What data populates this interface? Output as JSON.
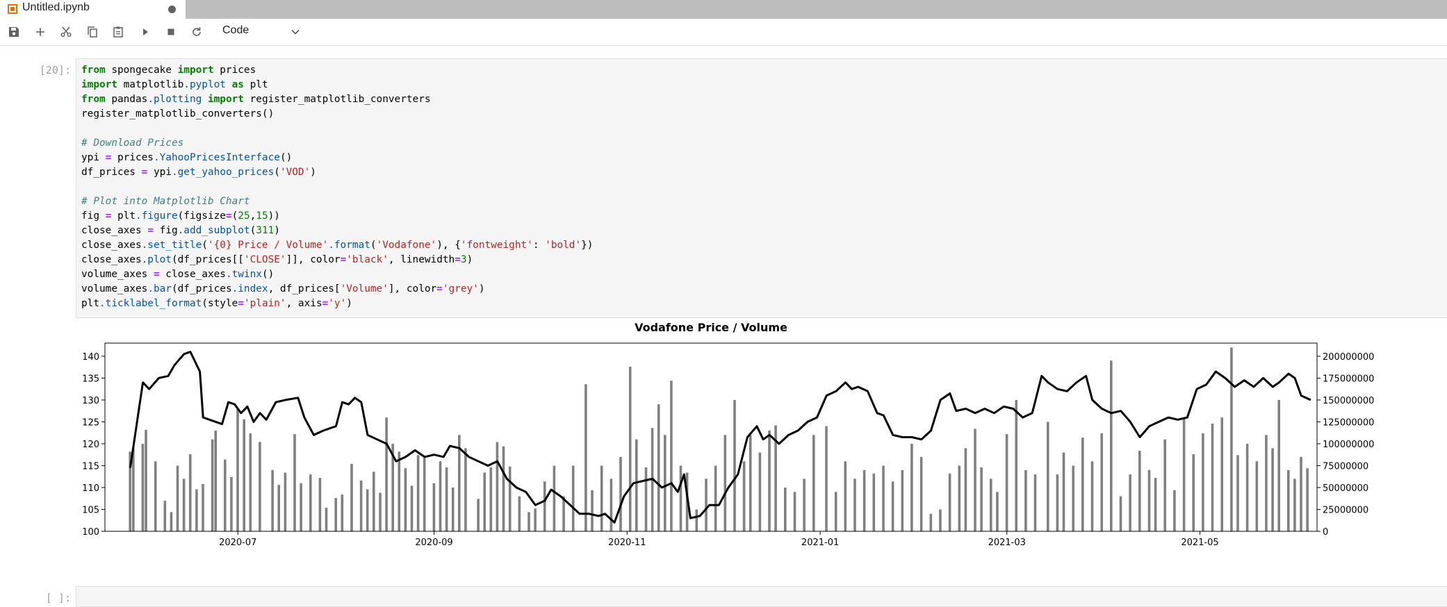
{
  "tab": {
    "title": "Untitled.ipynb",
    "icon": "notebook-icon",
    "dirty": true
  },
  "toolbar": {
    "buttons": [
      "save-icon",
      "add-cell-icon",
      "cut-icon",
      "copy-icon",
      "paste-icon",
      "run-icon",
      "stop-icon",
      "restart-icon"
    ],
    "cell_type": "Code"
  },
  "cell1": {
    "prompt": "[20]:",
    "code_lines": [
      "from spongecake import prices",
      "import matplotlib.pyplot as plt",
      "from pandas.plotting import register_matplotlib_converters",
      "register_matplotlib_converters()",
      "",
      "# Download Prices",
      "ypi = prices.YahooPricesInterface()",
      "df_prices = ypi.get_yahoo_prices('VOD')",
      "",
      "# Plot into Matplotlib Chart",
      "fig = plt.figure(figsize=(25,15))",
      "close_axes = fig.add_subplot(311)",
      "close_axes.set_title('{0} Price / Volume'.format('Vodafone'), {'fontweight': 'bold'})",
      "close_axes.plot(df_prices[['CLOSE']], color='black', linewidth=3)",
      "volume_axes = close_axes.twinx()",
      "volume_axes.bar(df_prices.index, df_prices['Volume'], color='grey')",
      "plt.ticklabel_format(style='plain', axis='y')"
    ]
  },
  "cell2": {
    "prompt": "[ ]:"
  },
  "chart_data": {
    "type": "line",
    "title": "Vodafone Price / Volume",
    "xlabel": "",
    "ylabel": "",
    "x_tick_labels": [
      "2020-07",
      "2020-09",
      "2020-11",
      "2021-01",
      "2021-03",
      "2021-05"
    ],
    "x_range": [
      "2020-05-20",
      "2021-06-07"
    ],
    "y_left_ticks": [
      100,
      105,
      110,
      115,
      120,
      125,
      130,
      135,
      140
    ],
    "y_left_range": [
      100,
      143
    ],
    "y_right_ticks": [
      0,
      25000000,
      50000000,
      75000000,
      100000000,
      125000000,
      150000000,
      175000000,
      200000000
    ],
    "y_right_range": [
      0,
      215000000
    ],
    "line_color": "#000000",
    "bar_color": "#808080",
    "close_series": {
      "name": "CLOSE",
      "points": [
        [
          "2020-05-28",
          114.5
        ],
        [
          "2020-06-01",
          134
        ],
        [
          "2020-06-03",
          132.5
        ],
        [
          "2020-06-06",
          135
        ],
        [
          "2020-06-09",
          135.5
        ],
        [
          "2020-06-11",
          138
        ],
        [
          "2020-06-14",
          140.5
        ],
        [
          "2020-06-16",
          141
        ],
        [
          "2020-06-19",
          136.5
        ],
        [
          "2020-06-20",
          126
        ],
        [
          "2020-06-24",
          125
        ],
        [
          "2020-06-26",
          124.5
        ],
        [
          "2020-06-28",
          129.5
        ],
        [
          "2020-06-30",
          129
        ],
        [
          "2020-07-02",
          127
        ],
        [
          "2020-07-04",
          128.5
        ],
        [
          "2020-07-06",
          125
        ],
        [
          "2020-07-08",
          127
        ],
        [
          "2020-07-10",
          125.5
        ],
        [
          "2020-07-13",
          129.5
        ],
        [
          "2020-07-16",
          130
        ],
        [
          "2020-07-20",
          130.5
        ],
        [
          "2020-07-22",
          126
        ],
        [
          "2020-07-25",
          122
        ],
        [
          "2020-07-28",
          123
        ],
        [
          "2020-08-01",
          124
        ],
        [
          "2020-08-03",
          129.5
        ],
        [
          "2020-08-05",
          129
        ],
        [
          "2020-08-07",
          130.5
        ],
        [
          "2020-08-09",
          129.5
        ],
        [
          "2020-08-11",
          122
        ],
        [
          "2020-08-14",
          121
        ],
        [
          "2020-08-17",
          120
        ],
        [
          "2020-08-20",
          116
        ],
        [
          "2020-08-23",
          117
        ],
        [
          "2020-08-26",
          118.5
        ],
        [
          "2020-08-29",
          117
        ],
        [
          "2020-09-01",
          117.5
        ],
        [
          "2020-09-04",
          117
        ],
        [
          "2020-09-06",
          119.5
        ],
        [
          "2020-09-09",
          119
        ],
        [
          "2020-09-12",
          117
        ],
        [
          "2020-09-15",
          116
        ],
        [
          "2020-09-18",
          115
        ],
        [
          "2020-09-21",
          116
        ],
        [
          "2020-09-24",
          112
        ],
        [
          "2020-09-27",
          110
        ],
        [
          "2020-09-30",
          109
        ],
        [
          "2020-10-03",
          106
        ],
        [
          "2020-10-06",
          107
        ],
        [
          "2020-10-08",
          109.5
        ],
        [
          "2020-10-11",
          108
        ],
        [
          "2020-10-14",
          106
        ],
        [
          "2020-10-17",
          104
        ],
        [
          "2020-10-20",
          104
        ],
        [
          "2020-10-23",
          103.5
        ],
        [
          "2020-10-25",
          104
        ],
        [
          "2020-10-28",
          102
        ],
        [
          "2020-10-31",
          108
        ],
        [
          "2020-11-03",
          111
        ],
        [
          "2020-11-06",
          111.5
        ],
        [
          "2020-11-09",
          112
        ],
        [
          "2020-11-12",
          110
        ],
        [
          "2020-11-15",
          111
        ],
        [
          "2020-11-17",
          109
        ],
        [
          "2020-11-19",
          113
        ],
        [
          "2020-11-21",
          103
        ],
        [
          "2020-11-24",
          103.5
        ],
        [
          "2020-11-27",
          106
        ],
        [
          "2020-11-30",
          106
        ],
        [
          "2020-12-03",
          110
        ],
        [
          "2020-12-06",
          113
        ],
        [
          "2020-12-09",
          121.5
        ],
        [
          "2020-12-12",
          124
        ],
        [
          "2020-12-14",
          121
        ],
        [
          "2020-12-16",
          122
        ],
        [
          "2020-12-19",
          120
        ],
        [
          "2020-12-22",
          122
        ],
        [
          "2020-12-25",
          123
        ],
        [
          "2020-12-28",
          125
        ],
        [
          "2020-12-31",
          126
        ],
        [
          "2021-01-03",
          131
        ],
        [
          "2021-01-06",
          132
        ],
        [
          "2021-01-09",
          134
        ],
        [
          "2021-01-11",
          132.5
        ],
        [
          "2021-01-13",
          133
        ],
        [
          "2021-01-16",
          132
        ],
        [
          "2021-01-19",
          127
        ],
        [
          "2021-01-21",
          126.5
        ],
        [
          "2021-01-24",
          122
        ],
        [
          "2021-01-27",
          121.5
        ],
        [
          "2021-01-30",
          121.5
        ],
        [
          "2021-02-02",
          121
        ],
        [
          "2021-02-05",
          123
        ],
        [
          "2021-02-08",
          130
        ],
        [
          "2021-02-11",
          131.5
        ],
        [
          "2021-02-13",
          127.5
        ],
        [
          "2021-02-16",
          128
        ],
        [
          "2021-02-19",
          127
        ],
        [
          "2021-02-22",
          128
        ],
        [
          "2021-02-25",
          127
        ],
        [
          "2021-02-28",
          128.5
        ],
        [
          "2021-03-03",
          128
        ],
        [
          "2021-03-06",
          126
        ],
        [
          "2021-03-09",
          127
        ],
        [
          "2021-03-12",
          135.5
        ],
        [
          "2021-03-14",
          134
        ],
        [
          "2021-03-17",
          132.5
        ],
        [
          "2021-03-20",
          132
        ],
        [
          "2021-03-23",
          134
        ],
        [
          "2021-03-26",
          135.5
        ],
        [
          "2021-03-28",
          130
        ],
        [
          "2021-03-31",
          128
        ],
        [
          "2021-04-03",
          127
        ],
        [
          "2021-04-06",
          127.5
        ],
        [
          "2021-04-09",
          125
        ],
        [
          "2021-04-12",
          121.5
        ],
        [
          "2021-04-15",
          124
        ],
        [
          "2021-04-18",
          125
        ],
        [
          "2021-04-21",
          126
        ],
        [
          "2021-04-24",
          125.5
        ],
        [
          "2021-04-27",
          126
        ],
        [
          "2021-04-30",
          132.5
        ],
        [
          "2021-05-03",
          133.5
        ],
        [
          "2021-05-06",
          136.5
        ],
        [
          "2021-05-09",
          135
        ],
        [
          "2021-05-12",
          133
        ],
        [
          "2021-05-15",
          134.5
        ],
        [
          "2021-05-18",
          133
        ],
        [
          "2021-05-21",
          135
        ],
        [
          "2021-05-24",
          133
        ],
        [
          "2021-05-26",
          134
        ],
        [
          "2021-05-29",
          136
        ],
        [
          "2021-05-31",
          135
        ],
        [
          "2021-06-02",
          131
        ],
        [
          "2021-06-05",
          130
        ]
      ]
    },
    "volume_series": {
      "name": "Volume",
      "points": [
        [
          "2020-05-28",
          91000000
        ],
        [
          "2020-05-29",
          95000000
        ],
        [
          "2020-06-01",
          100000000
        ],
        [
          "2020-06-02",
          116000000
        ],
        [
          "2020-06-05",
          80000000
        ],
        [
          "2020-06-08",
          35000000
        ],
        [
          "2020-06-10",
          22000000
        ],
        [
          "2020-06-12",
          75000000
        ],
        [
          "2020-06-14",
          60000000
        ],
        [
          "2020-06-16",
          88000000
        ],
        [
          "2020-06-18",
          48000000
        ],
        [
          "2020-06-20",
          54000000
        ],
        [
          "2020-06-23",
          105000000
        ],
        [
          "2020-06-24",
          115000000
        ],
        [
          "2020-06-27",
          82000000
        ],
        [
          "2020-06-29",
          62000000
        ],
        [
          "2020-07-01",
          141000000
        ],
        [
          "2020-07-03",
          128000000
        ],
        [
          "2020-07-05",
          112000000
        ],
        [
          "2020-07-08",
          102000000
        ],
        [
          "2020-07-12",
          70000000
        ],
        [
          "2020-07-14",
          53000000
        ],
        [
          "2020-07-16",
          67000000
        ],
        [
          "2020-07-19",
          111000000
        ],
        [
          "2020-07-21",
          55000000
        ],
        [
          "2020-07-24",
          65000000
        ],
        [
          "2020-07-27",
          61000000
        ],
        [
          "2020-07-29",
          27000000
        ],
        [
          "2020-08-01",
          38000000
        ],
        [
          "2020-08-03",
          42000000
        ],
        [
          "2020-08-06",
          77000000
        ],
        [
          "2020-08-09",
          58000000
        ],
        [
          "2020-08-11",
          48000000
        ],
        [
          "2020-08-13",
          68000000
        ],
        [
          "2020-08-15",
          44000000
        ],
        [
          "2020-08-17",
          130000000
        ],
        [
          "2020-08-19",
          100000000
        ],
        [
          "2020-08-21",
          91000000
        ],
        [
          "2020-08-23",
          72000000
        ],
        [
          "2020-08-25",
          52000000
        ],
        [
          "2020-08-27",
          87000000
        ],
        [
          "2020-08-29",
          84000000
        ],
        [
          "2020-09-01",
          55000000
        ],
        [
          "2020-09-03",
          80000000
        ],
        [
          "2020-09-05",
          73000000
        ],
        [
          "2020-09-07",
          50000000
        ],
        [
          "2020-09-09",
          110000000
        ],
        [
          "2020-09-11",
          95000000
        ],
        [
          "2020-09-15",
          37000000
        ],
        [
          "2020-09-17",
          67000000
        ],
        [
          "2020-09-19",
          73000000
        ],
        [
          "2020-09-21",
          102000000
        ],
        [
          "2020-09-23",
          97000000
        ],
        [
          "2020-09-25",
          74000000
        ],
        [
          "2020-09-28",
          40000000
        ],
        [
          "2020-10-01",
          22000000
        ],
        [
          "2020-10-03",
          26000000
        ],
        [
          "2020-10-06",
          57000000
        ],
        [
          "2020-10-09",
          75000000
        ],
        [
          "2020-10-12",
          40000000
        ],
        [
          "2020-10-15",
          75000000
        ],
        [
          "2020-10-19",
          168000000
        ],
        [
          "2020-10-21",
          47000000
        ],
        [
          "2020-10-24",
          75000000
        ],
        [
          "2020-10-27",
          60000000
        ],
        [
          "2020-10-30",
          85000000
        ],
        [
          "2020-11-02",
          188000000
        ],
        [
          "2020-11-04",
          105000000
        ],
        [
          "2020-11-07",
          73000000
        ],
        [
          "2020-11-09",
          118000000
        ],
        [
          "2020-11-11",
          145000000
        ],
        [
          "2020-11-13",
          110000000
        ],
        [
          "2020-11-15",
          172000000
        ],
        [
          "2020-11-18",
          75000000
        ],
        [
          "2020-11-20",
          67000000
        ],
        [
          "2020-11-23",
          25000000
        ],
        [
          "2020-11-26",
          60000000
        ],
        [
          "2020-11-29",
          75000000
        ],
        [
          "2020-12-02",
          110000000
        ],
        [
          "2020-12-05",
          150000000
        ],
        [
          "2020-12-08",
          80000000
        ],
        [
          "2020-12-10",
          110000000
        ],
        [
          "2020-12-13",
          90000000
        ],
        [
          "2020-12-16",
          115000000
        ],
        [
          "2020-12-18",
          121000000
        ],
        [
          "2020-12-21",
          50000000
        ],
        [
          "2020-12-24",
          45000000
        ],
        [
          "2020-12-27",
          60000000
        ],
        [
          "2020-12-30",
          110000000
        ],
        [
          "2021-01-03",
          120000000
        ],
        [
          "2021-01-06",
          45000000
        ],
        [
          "2021-01-09",
          80000000
        ],
        [
          "2021-01-12",
          60000000
        ],
        [
          "2021-01-15",
          70000000
        ],
        [
          "2021-01-18",
          66000000
        ],
        [
          "2021-01-21",
          75000000
        ],
        [
          "2021-01-24",
          57000000
        ],
        [
          "2021-01-27",
          70000000
        ],
        [
          "2021-01-30",
          100000000
        ],
        [
          "2021-02-02",
          85000000
        ],
        [
          "2021-02-05",
          20000000
        ],
        [
          "2021-02-08",
          25000000
        ],
        [
          "2021-02-11",
          66000000
        ],
        [
          "2021-02-14",
          75000000
        ],
        [
          "2021-02-16",
          95000000
        ],
        [
          "2021-02-19",
          117000000
        ],
        [
          "2021-02-21",
          73000000
        ],
        [
          "2021-02-24",
          60000000
        ],
        [
          "2021-02-26",
          45000000
        ],
        [
          "2021-03-01",
          111000000
        ],
        [
          "2021-03-04",
          150000000
        ],
        [
          "2021-03-07",
          70000000
        ],
        [
          "2021-03-10",
          65000000
        ],
        [
          "2021-03-14",
          125000000
        ],
        [
          "2021-03-17",
          65000000
        ],
        [
          "2021-03-19",
          90000000
        ],
        [
          "2021-03-22",
          75000000
        ],
        [
          "2021-03-25",
          107000000
        ],
        [
          "2021-03-28",
          80000000
        ],
        [
          "2021-03-31",
          112000000
        ],
        [
          "2021-04-03",
          195000000
        ],
        [
          "2021-04-06",
          40000000
        ],
        [
          "2021-04-09",
          65000000
        ],
        [
          "2021-04-12",
          92000000
        ],
        [
          "2021-04-15",
          70000000
        ],
        [
          "2021-04-17",
          61000000
        ],
        [
          "2021-04-20",
          105000000
        ],
        [
          "2021-04-23",
          47000000
        ],
        [
          "2021-04-26",
          130000000
        ],
        [
          "2021-04-29",
          88000000
        ],
        [
          "2021-05-02",
          112000000
        ],
        [
          "2021-05-05",
          123000000
        ],
        [
          "2021-05-08",
          130000000
        ],
        [
          "2021-05-11",
          210000000
        ],
        [
          "2021-05-13",
          87000000
        ],
        [
          "2021-05-16",
          100000000
        ],
        [
          "2021-05-19",
          80000000
        ],
        [
          "2021-05-22",
          110000000
        ],
        [
          "2021-05-24",
          95000000
        ],
        [
          "2021-05-26",
          150000000
        ],
        [
          "2021-05-29",
          70000000
        ],
        [
          "2021-05-31",
          60000000
        ],
        [
          "2021-06-02",
          85000000
        ],
        [
          "2021-06-04",
          72000000
        ]
      ]
    }
  }
}
